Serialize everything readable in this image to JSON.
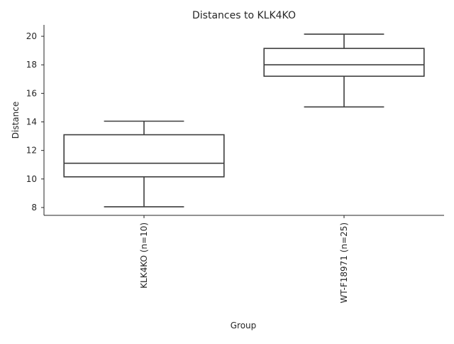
{
  "chart_data": {
    "type": "box",
    "title": "Distances to KLK4KO",
    "xlabel": "Group",
    "ylabel": "Distance",
    "categories": [
      "KLK4KO (n=10)",
      "WT-F18971 (n=25)"
    ],
    "boxes": [
      {
        "category": "KLK4KO (n=10)",
        "whislo": 8.05,
        "q1": 10.15,
        "med": 11.1,
        "q3": 13.1,
        "whishi": 14.05
      },
      {
        "category": "WT-F18971 (n=25)",
        "whislo": 15.05,
        "q1": 17.2,
        "med": 18.0,
        "q3": 19.15,
        "whishi": 20.15
      }
    ],
    "ylim": [
      7.45,
      20.8
    ],
    "yticks": [
      8,
      10,
      12,
      14,
      16,
      18,
      20
    ],
    "grid": false,
    "colors": {
      "box_edge": "#3d3d3d",
      "box_fill": "#ffffff",
      "axis": "#262626"
    }
  }
}
